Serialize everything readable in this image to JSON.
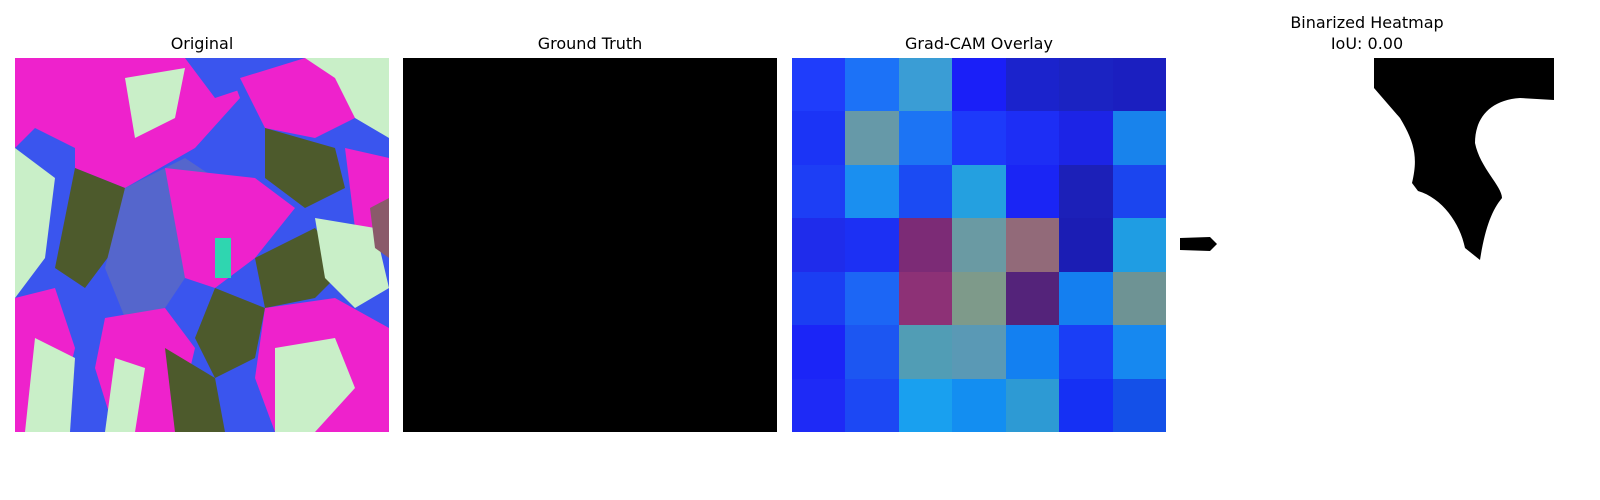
{
  "panels": {
    "original": {
      "title": "Original"
    },
    "ground_truth": {
      "title": "Ground Truth"
    },
    "gradcam": {
      "title": "Grad-CAM Overlay",
      "cells": [
        [
          "#1f3dfb",
          "#1c72f7",
          "#3a9dd5",
          "#1a1ff8",
          "#1b23cc",
          "#1b23c2",
          "#1b1fc0"
        ],
        [
          "#1b34f6",
          "#6699a8",
          "#1c74f4",
          "#1d3afa",
          "#1d2ef5",
          "#1c24e6",
          "#1883ec"
        ],
        [
          "#1d3ef5",
          "#1a8ff0",
          "#1b4bf3",
          "#24a0e0",
          "#1a25f5",
          "#1c20b8",
          "#1b45ef"
        ],
        [
          "#1f2ceb",
          "#1c30f4",
          "#7c2b76",
          "#6a9aa3",
          "#926a79",
          "#1b1db4",
          "#1f9de3"
        ],
        [
          "#1b3ef3",
          "#1c66f5",
          "#8d3176",
          "#7e9a8a",
          "#54237a",
          "#147ff0",
          "#6e9394"
        ],
        [
          "#1b25f7",
          "#1c56f2",
          "#519db5",
          "#5a99b5",
          "#1380f1",
          "#1a3ef6",
          "#1688f0"
        ],
        [
          "#1e2af6",
          "#1c48f4",
          "#19a0ef",
          "#138ef1",
          "#2d9ad4",
          "#1530f4",
          "#1450e8"
        ]
      ]
    },
    "binarized": {
      "title_line1": "Binarized Heatmap",
      "title_line2": "IoU: 0.00"
    }
  }
}
